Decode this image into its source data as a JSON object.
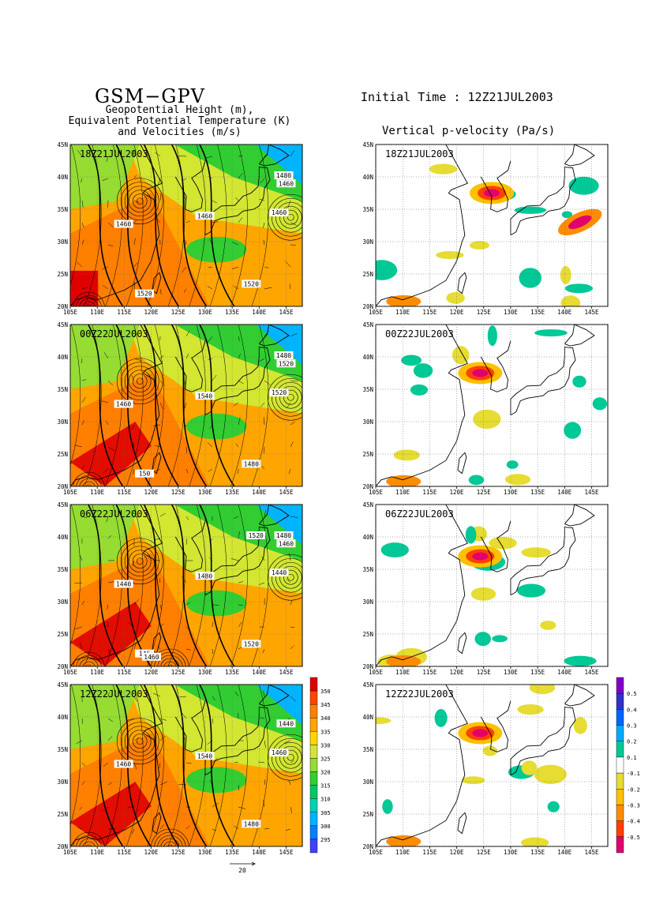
{
  "header": {
    "title": "GSM−GPV",
    "subtitle_lines": [
      "Geopotential Height (m),",
      "Equivalent Potential Temperature (K)",
      "and Velocities (m/s)"
    ],
    "initial_time": "Initial Time : 12Z21JUL2003",
    "right_title": "Vertical p-velocity (Pa/s)"
  },
  "axes": {
    "lon_ticks": [
      "105E",
      "110E",
      "115E",
      "120E",
      "125E",
      "130E",
      "135E",
      "140E",
      "145E"
    ],
    "lat_ticks": [
      "20N",
      "25N",
      "30N",
      "35N",
      "40N",
      "45N"
    ],
    "lat_ticks_top_right": [
      "30N",
      "35N",
      "40N",
      "45N"
    ]
  },
  "vector_ref": "20",
  "colors": {
    "theta_e": [
      "#9400d3",
      "#6a0dad",
      "#4040ff",
      "#0080ff",
      "#00b4ff",
      "#00d2b4",
      "#00c864",
      "#32cd32",
      "#96dc32",
      "#d2e632",
      "#ffd700",
      "#ffa500",
      "#ff7f00",
      "#ff4500",
      "#e00000"
    ],
    "omega": [
      "#e0006e",
      "#ff4000",
      "#ff8c00",
      "#ffc000",
      "#e6dc32",
      "#ffffff",
      "#00c896",
      "#00aaff",
      "#0064ff",
      "#3232c8",
      "#8000c8"
    ]
  },
  "chart_data": [
    {
      "type": "heatmap",
      "title": "Geopotential Height (m), Equivalent Potential Temperature (K) and Velocities (m/s)",
      "panels": [
        {
          "time": "18Z21JUL2003",
          "contour_labels": [
            "1460",
            "1460",
            "1460",
            "1460",
            "1520",
            "1520",
            "1480"
          ]
        },
        {
          "time": "00Z22JUL2003",
          "contour_labels": [
            "1460",
            "1520",
            "1520",
            "1540",
            "1480",
            "150",
            "1480"
          ]
        },
        {
          "time": "06Z22JUL2003",
          "contour_labels": [
            "1440",
            "1460",
            "1440",
            "1480",
            "1520",
            "146",
            "1480",
            "1520",
            "1460"
          ]
        },
        {
          "time": "12Z22JUL2003",
          "contour_labels": [
            "1460",
            "1440",
            "1460",
            "1540",
            "1480"
          ]
        }
      ],
      "x_range": [
        "105E",
        "148E"
      ],
      "y_range": [
        "20N",
        "45N"
      ],
      "colorbar": {
        "label_values": [
          "350",
          "345",
          "340",
          "335",
          "330",
          "325",
          "320",
          "315",
          "310",
          "305",
          "300",
          "295"
        ]
      }
    },
    {
      "type": "heatmap",
      "title": "Vertical p-velocity (Pa/s)",
      "panels": [
        {
          "time": "18Z21JUL2003"
        },
        {
          "time": "00Z22JUL2003"
        },
        {
          "time": "06Z22JUL2003"
        },
        {
          "time": "12Z22JUL2003"
        }
      ],
      "x_range": [
        "105E",
        "148E"
      ],
      "y_range": [
        "20N",
        "45N"
      ],
      "colorbar": {
        "label_values": [
          "0.5",
          "0.4",
          "0.3",
          "0.2",
          "0.1",
          "-0.1",
          "-0.2",
          "-0.3",
          "-0.4",
          "-0.5"
        ]
      }
    }
  ]
}
